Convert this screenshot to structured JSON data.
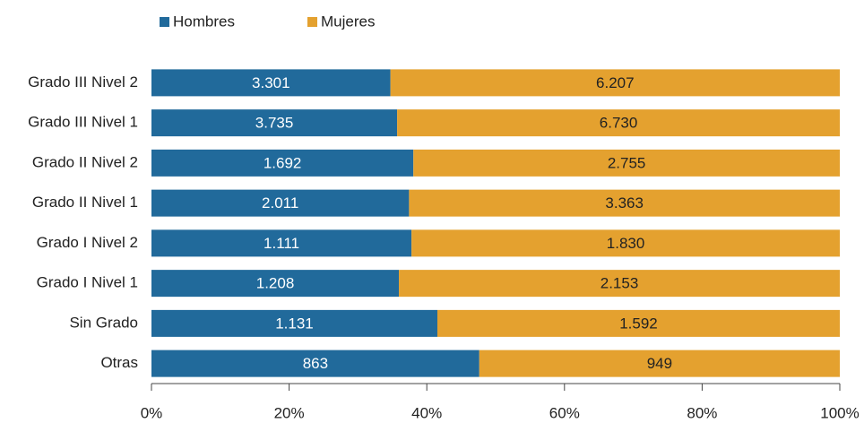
{
  "chart_data": {
    "type": "bar",
    "orientation": "horizontal",
    "stacked": "percent",
    "categories": [
      "Grado III Nivel 2",
      "Grado III Nivel 1",
      "Grado II Nivel 2",
      "Grado II Nivel 1",
      "Grado I Nivel 2",
      "Grado I Nivel 1",
      "Sin Grado",
      "Otras"
    ],
    "series": [
      {
        "name": "Hombres",
        "color": "#216a9b",
        "label_color": "#ffffff",
        "values": [
          3301,
          3735,
          1692,
          2011,
          1111,
          1208,
          1131,
          863
        ],
        "value_labels": [
          "3.301",
          "3.735",
          "1.692",
          "2.011",
          "1.111",
          "1.208",
          "1.131",
          "863"
        ]
      },
      {
        "name": "Mujeres",
        "color": "#e4a12f",
        "label_color": "#222222",
        "values": [
          6207,
          6730,
          2755,
          3363,
          1830,
          2153,
          1592,
          949
        ],
        "value_labels": [
          "6.207",
          "6.730",
          "2.755",
          "3.363",
          "1.830",
          "2.153",
          "1.592",
          "949"
        ]
      }
    ],
    "xlim": [
      0,
      100
    ],
    "xticks": [
      {
        "value": 0,
        "label": "0%"
      },
      {
        "value": 20,
        "label": "20%"
      },
      {
        "value": 40,
        "label": "40%"
      },
      {
        "value": 60,
        "label": "60%"
      },
      {
        "value": 80,
        "label": "80%"
      },
      {
        "value": 100,
        "label": "100%"
      }
    ],
    "legend": "top-left"
  }
}
